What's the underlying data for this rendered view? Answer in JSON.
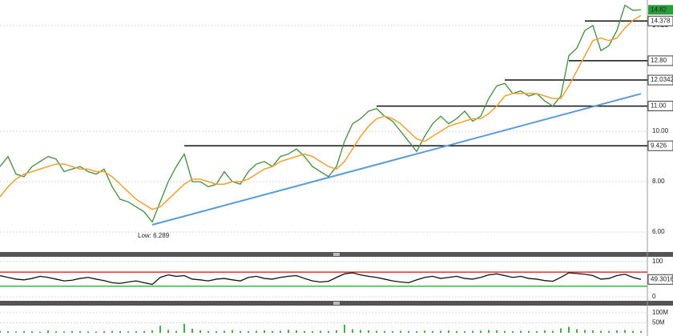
{
  "chart_data": [
    {
      "type": "line",
      "categories": [
        null,
        null,
        null,
        null,
        null,
        null,
        null,
        null,
        null,
        null,
        null,
        null,
        null,
        null,
        null,
        null,
        null,
        null,
        null,
        null,
        null,
        null,
        null,
        null,
        null,
        null,
        null,
        null,
        null,
        null,
        null,
        null,
        null,
        null,
        null,
        null,
        null,
        null,
        null,
        null,
        null,
        null,
        null,
        null,
        null,
        null,
        null,
        null,
        null,
        null,
        null,
        null,
        null,
        null,
        null,
        null,
        null,
        null,
        null,
        null,
        null,
        null,
        null,
        null,
        null,
        null,
        null,
        null,
        null,
        null,
        null,
        null,
        null,
        null,
        null,
        null,
        null,
        null,
        null,
        null,
        null
      ],
      "series": [
        {
          "color": "#3f8f3a",
          "values": [
            8.6,
            9.0,
            8.3,
            8.2,
            8.6,
            8.8,
            9.0,
            8.9,
            8.4,
            8.5,
            8.6,
            8.4,
            8.3,
            8.5,
            7.8,
            7.3,
            7.2,
            7.0,
            6.8,
            6.4,
            7.2,
            8.0,
            8.6,
            9.1,
            8.0,
            8.0,
            7.8,
            7.9,
            8.4,
            8.0,
            7.9,
            8.4,
            8.7,
            8.8,
            8.6,
            9.0,
            9.1,
            9.3,
            9.0,
            8.6,
            8.4,
            8.2,
            8.6,
            9.6,
            10.3,
            10.5,
            10.8,
            10.9,
            10.6,
            10.4,
            10.0,
            9.6,
            9.2,
            9.8,
            10.3,
            10.6,
            10.3,
            10.5,
            10.8,
            10.4,
            10.6,
            11.3,
            11.8,
            11.9,
            11.5,
            11.6,
            11.4,
            11.5,
            11.2,
            11.0,
            11.4,
            13.0,
            13.3,
            14.0,
            14.2,
            13.2,
            13.4,
            14.0,
            15.0,
            14.8,
            14.82
          ]
        },
        {
          "color": "#f0a030",
          "values": [
            7.4,
            7.8,
            8.1,
            8.3,
            8.4,
            8.5,
            8.6,
            8.7,
            8.7,
            8.6,
            8.5,
            8.5,
            8.4,
            8.4,
            8.2,
            7.9,
            7.6,
            7.3,
            7.1,
            6.9,
            7.0,
            7.3,
            7.6,
            7.9,
            8.1,
            8.1,
            8.0,
            7.9,
            7.9,
            8.0,
            8.0,
            8.1,
            8.3,
            8.5,
            8.6,
            8.8,
            8.9,
            9.0,
            9.1,
            9.0,
            8.8,
            8.6,
            8.5,
            8.8,
            9.3,
            9.8,
            10.2,
            10.5,
            10.6,
            10.5,
            10.3,
            10.0,
            9.7,
            9.6,
            9.8,
            10.0,
            10.2,
            10.3,
            10.4,
            10.5,
            10.5,
            10.7,
            11.0,
            11.4,
            11.5,
            11.5,
            11.5,
            11.5,
            11.4,
            11.3,
            11.3,
            11.8,
            12.4,
            13.0,
            13.6,
            13.7,
            13.6,
            13.7,
            14.1,
            14.4,
            14.6
          ]
        }
      ],
      "ylim": [
        5.21,
        15.21
      ],
      "yticks": [
        {
          "value": 6,
          "label": "6.00"
        },
        {
          "value": 8,
          "label": "8.00"
        },
        {
          "value": 10,
          "label": "10.00"
        },
        {
          "value": 14.2,
          "label": "14.20"
        }
      ],
      "grid": true,
      "levels": [
        {
          "value": 9.426,
          "label": "9.426",
          "from": 23
        },
        {
          "value": 11,
          "label": "11.00",
          "from": 47
        },
        {
          "value": 12.0342,
          "label": "12.0342",
          "from": 63
        },
        {
          "value": 12.8,
          "label": "12.80",
          "from": 71
        },
        {
          "value": 14.378,
          "label": "14.378",
          "from": 73
        }
      ],
      "trendline": {
        "color": "#5b9bd5",
        "x": [
          19,
          80
        ],
        "values": [
          6.289,
          11.49
        ]
      },
      "low_label": "Low: 6.289",
      "last_color": "#2a9d3a"
    },
    {
      "type": "line",
      "series": [
        {
          "color": "#111111",
          "values": [
            60,
            55,
            50,
            48,
            52,
            58,
            55,
            50,
            45,
            47,
            52,
            55,
            50,
            46,
            40,
            38,
            42,
            45,
            40,
            35,
            55,
            62,
            58,
            60,
            50,
            48,
            45,
            50,
            52,
            48,
            45,
            55,
            58,
            52,
            50,
            55,
            58,
            60,
            52,
            45,
            42,
            44,
            55,
            65,
            68,
            62,
            58,
            55,
            50,
            45,
            42,
            40,
            48,
            55,
            58,
            52,
            55,
            58,
            52,
            50,
            55,
            62,
            65,
            60,
            55,
            58,
            52,
            50,
            46,
            44,
            55,
            68,
            66,
            64,
            60,
            50,
            52,
            60,
            64,
            55,
            49.3016
          ]
        }
      ],
      "ylim": [
        -9,
        111
      ],
      "yticks": [
        100,
        0
      ],
      "bands": [
        {
          "value": 70,
          "color": "#e03030"
        },
        {
          "value": 30,
          "color": "#30c030"
        }
      ]
    },
    {
      "type": "bar",
      "values": [
        10,
        8,
        7,
        9,
        8,
        6,
        12,
        8,
        7,
        9,
        8,
        7,
        6,
        8,
        10,
        9,
        7,
        8,
        9,
        12,
        35,
        15,
        10,
        45,
        20,
        12,
        9,
        8,
        10,
        14,
        9,
        8,
        10,
        12,
        9,
        10,
        15,
        12,
        9,
        8,
        10,
        9,
        12,
        40,
        18,
        14,
        12,
        10,
        9,
        8,
        10,
        9,
        8,
        11,
        9,
        10,
        12,
        9,
        8,
        10,
        11,
        14,
        12,
        9,
        8,
        10,
        9,
        8,
        12,
        10,
        22,
        30,
        18,
        14,
        12,
        10,
        9,
        12,
        14,
        10,
        9
      ],
      "color": "#3cb043",
      "ylim": [
        -15.6,
        131
      ],
      "yticks": [
        {
          "value": 100,
          "label": "100M"
        },
        {
          "value": 50,
          "label": "50M"
        }
      ]
    }
  ]
}
